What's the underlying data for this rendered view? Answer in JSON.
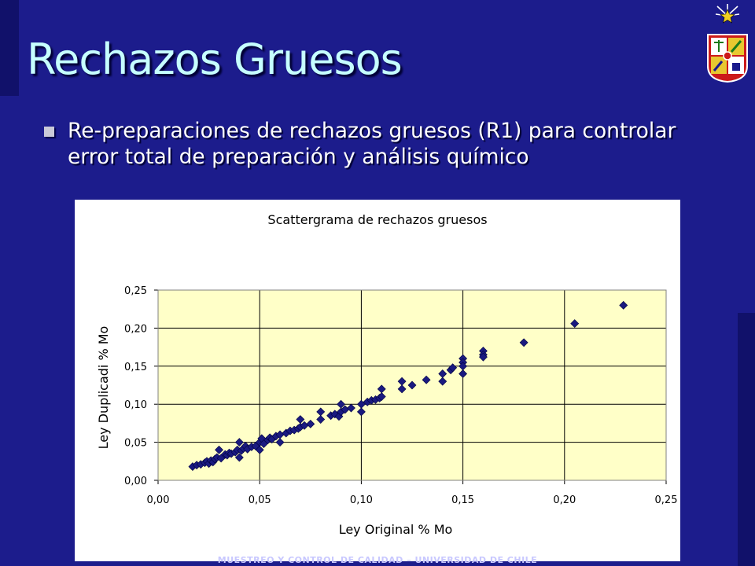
{
  "slide": {
    "title": "Rechazos Gruesos",
    "bullet": "Re-preparaciones de rechazos gruesos (R1) para controlar error total de preparación y análisis químico",
    "footer": "MUESTREO Y CONTROL DE CALIDAD – UNIVERSIDAD DE CHILE"
  },
  "colors": {
    "background": "#1c1c8c",
    "title": "#c6ffff",
    "plot_area": "#ffffc8",
    "marker": "#1a1a80"
  },
  "icons": {
    "emblem": "university-crest-icon",
    "star": "star-icon"
  },
  "chart_data": {
    "type": "scatter",
    "title": "Scattergrama de rechazos gruesos",
    "xlabel": "Ley Original % Mo",
    "ylabel": "Ley Duplicadi % Mo",
    "xlim": [
      0,
      0.25
    ],
    "ylim": [
      0,
      0.25
    ],
    "x_ticks": [
      "0,00",
      "0,05",
      "0,10",
      "0,15",
      "0,20",
      "0,25"
    ],
    "y_ticks": [
      "0,00",
      "0,05",
      "0,10",
      "0,15",
      "0,20",
      "0,25"
    ],
    "grid": "vertical and horizontal major gridlines",
    "marker": "diamond",
    "series": [
      {
        "points": [
          [
            0.017,
            0.018
          ],
          [
            0.019,
            0.02
          ],
          [
            0.021,
            0.021
          ],
          [
            0.023,
            0.023
          ],
          [
            0.024,
            0.025
          ],
          [
            0.025,
            0.022
          ],
          [
            0.026,
            0.026
          ],
          [
            0.027,
            0.024
          ],
          [
            0.028,
            0.028
          ],
          [
            0.029,
            0.03
          ],
          [
            0.03,
            0.04
          ],
          [
            0.031,
            0.029
          ],
          [
            0.033,
            0.034
          ],
          [
            0.034,
            0.033
          ],
          [
            0.035,
            0.036
          ],
          [
            0.036,
            0.035
          ],
          [
            0.038,
            0.037
          ],
          [
            0.039,
            0.04
          ],
          [
            0.04,
            0.05
          ],
          [
            0.04,
            0.03
          ],
          [
            0.041,
            0.039
          ],
          [
            0.042,
            0.042
          ],
          [
            0.043,
            0.045
          ],
          [
            0.044,
            0.041
          ],
          [
            0.046,
            0.044
          ],
          [
            0.048,
            0.045
          ],
          [
            0.05,
            0.05
          ],
          [
            0.05,
            0.04
          ],
          [
            0.051,
            0.055
          ],
          [
            0.052,
            0.048
          ],
          [
            0.054,
            0.053
          ],
          [
            0.055,
            0.056
          ],
          [
            0.056,
            0.054
          ],
          [
            0.058,
            0.058
          ],
          [
            0.06,
            0.06
          ],
          [
            0.06,
            0.05
          ],
          [
            0.063,
            0.062
          ],
          [
            0.065,
            0.065
          ],
          [
            0.067,
            0.066
          ],
          [
            0.069,
            0.068
          ],
          [
            0.07,
            0.08
          ],
          [
            0.07,
            0.07
          ],
          [
            0.072,
            0.072
          ],
          [
            0.075,
            0.074
          ],
          [
            0.08,
            0.09
          ],
          [
            0.08,
            0.08
          ],
          [
            0.085,
            0.085
          ],
          [
            0.087,
            0.087
          ],
          [
            0.089,
            0.084
          ],
          [
            0.09,
            0.1
          ],
          [
            0.09,
            0.09
          ],
          [
            0.092,
            0.093
          ],
          [
            0.095,
            0.095
          ],
          [
            0.1,
            0.1
          ],
          [
            0.1,
            0.09
          ],
          [
            0.103,
            0.103
          ],
          [
            0.105,
            0.105
          ],
          [
            0.107,
            0.106
          ],
          [
            0.109,
            0.108
          ],
          [
            0.11,
            0.12
          ],
          [
            0.11,
            0.11
          ],
          [
            0.12,
            0.13
          ],
          [
            0.12,
            0.12
          ],
          [
            0.125,
            0.125
          ],
          [
            0.132,
            0.132
          ],
          [
            0.14,
            0.14
          ],
          [
            0.14,
            0.13
          ],
          [
            0.144,
            0.145
          ],
          [
            0.145,
            0.148
          ],
          [
            0.15,
            0.16
          ],
          [
            0.15,
            0.155
          ],
          [
            0.15,
            0.15
          ],
          [
            0.15,
            0.14
          ],
          [
            0.16,
            0.17
          ],
          [
            0.16,
            0.165
          ],
          [
            0.16,
            0.162
          ],
          [
            0.18,
            0.181
          ],
          [
            0.205,
            0.206
          ],
          [
            0.229,
            0.23
          ]
        ]
      }
    ]
  }
}
